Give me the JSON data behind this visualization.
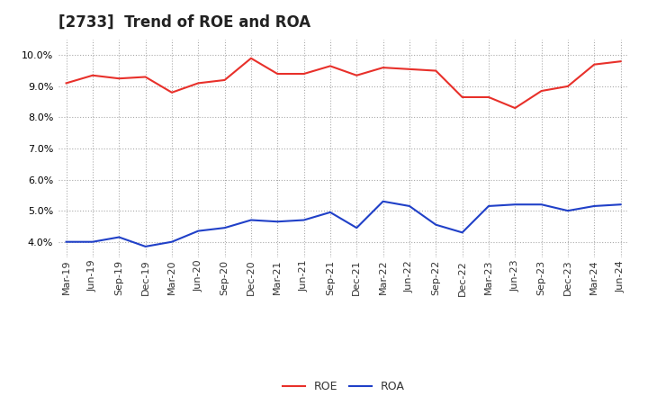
{
  "title": "[2733]  Trend of ROE and ROA",
  "x_labels": [
    "Mar-19",
    "Jun-19",
    "Sep-19",
    "Dec-19",
    "Mar-20",
    "Jun-20",
    "Sep-20",
    "Dec-20",
    "Mar-21",
    "Jun-21",
    "Sep-21",
    "Dec-21",
    "Mar-22",
    "Jun-22",
    "Sep-22",
    "Dec-22",
    "Mar-23",
    "Jun-23",
    "Sep-23",
    "Dec-23",
    "Mar-24",
    "Jun-24"
  ],
  "roe": [
    9.1,
    9.35,
    9.25,
    9.3,
    8.8,
    9.1,
    9.2,
    9.9,
    9.4,
    9.4,
    9.65,
    9.35,
    9.6,
    9.55,
    9.5,
    8.65,
    8.65,
    8.3,
    8.85,
    9.0,
    9.7,
    9.8
  ],
  "roa": [
    4.0,
    4.0,
    4.15,
    3.85,
    4.0,
    4.35,
    4.45,
    4.7,
    4.65,
    4.7,
    4.95,
    4.45,
    5.3,
    5.15,
    4.55,
    4.3,
    5.15,
    5.2,
    5.2,
    5.0,
    5.15,
    5.2
  ],
  "roe_color": "#e8302a",
  "roa_color": "#2040c8",
  "background_color": "#ffffff",
  "grid_color": "#aaaaaa",
  "ylim": [
    3.5,
    10.5
  ],
  "yticks": [
    4.0,
    5.0,
    6.0,
    7.0,
    8.0,
    9.0,
    10.0
  ],
  "legend_labels": [
    "ROE",
    "ROA"
  ],
  "linewidth": 1.5,
  "title_fontsize": 12,
  "tick_fontsize": 8,
  "legend_fontsize": 9
}
